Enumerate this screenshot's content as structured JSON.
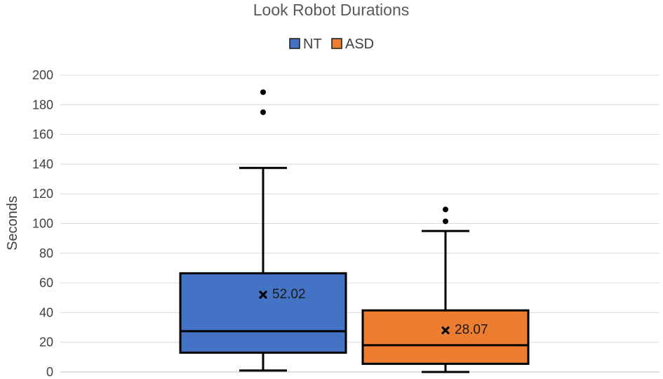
{
  "chart_data": {
    "type": "box",
    "title": "Look Robot Durations",
    "xlabel": "",
    "ylabel": "Seconds",
    "ylim": [
      0,
      200
    ],
    "yticks": [
      0,
      20,
      40,
      60,
      80,
      100,
      120,
      140,
      160,
      180,
      200
    ],
    "grid": true,
    "legend": "top-center",
    "series": [
      {
        "name": "NT",
        "color": "#4472C4",
        "whisker_low": 1,
        "q1": 13,
        "median": 27.5,
        "q3": 66.5,
        "whisker_high": 137.5,
        "mean": 52.02,
        "mean_label": "52.02",
        "outliers": [
          175,
          188.5
        ]
      },
      {
        "name": "ASD",
        "color": "#ED7D31",
        "whisker_low": 0,
        "q1": 5.5,
        "median": 18,
        "q3": 41.5,
        "whisker_high": 95,
        "mean": 28.07,
        "mean_label": "28.07",
        "outliers": [
          101.5,
          109.5
        ]
      }
    ]
  }
}
